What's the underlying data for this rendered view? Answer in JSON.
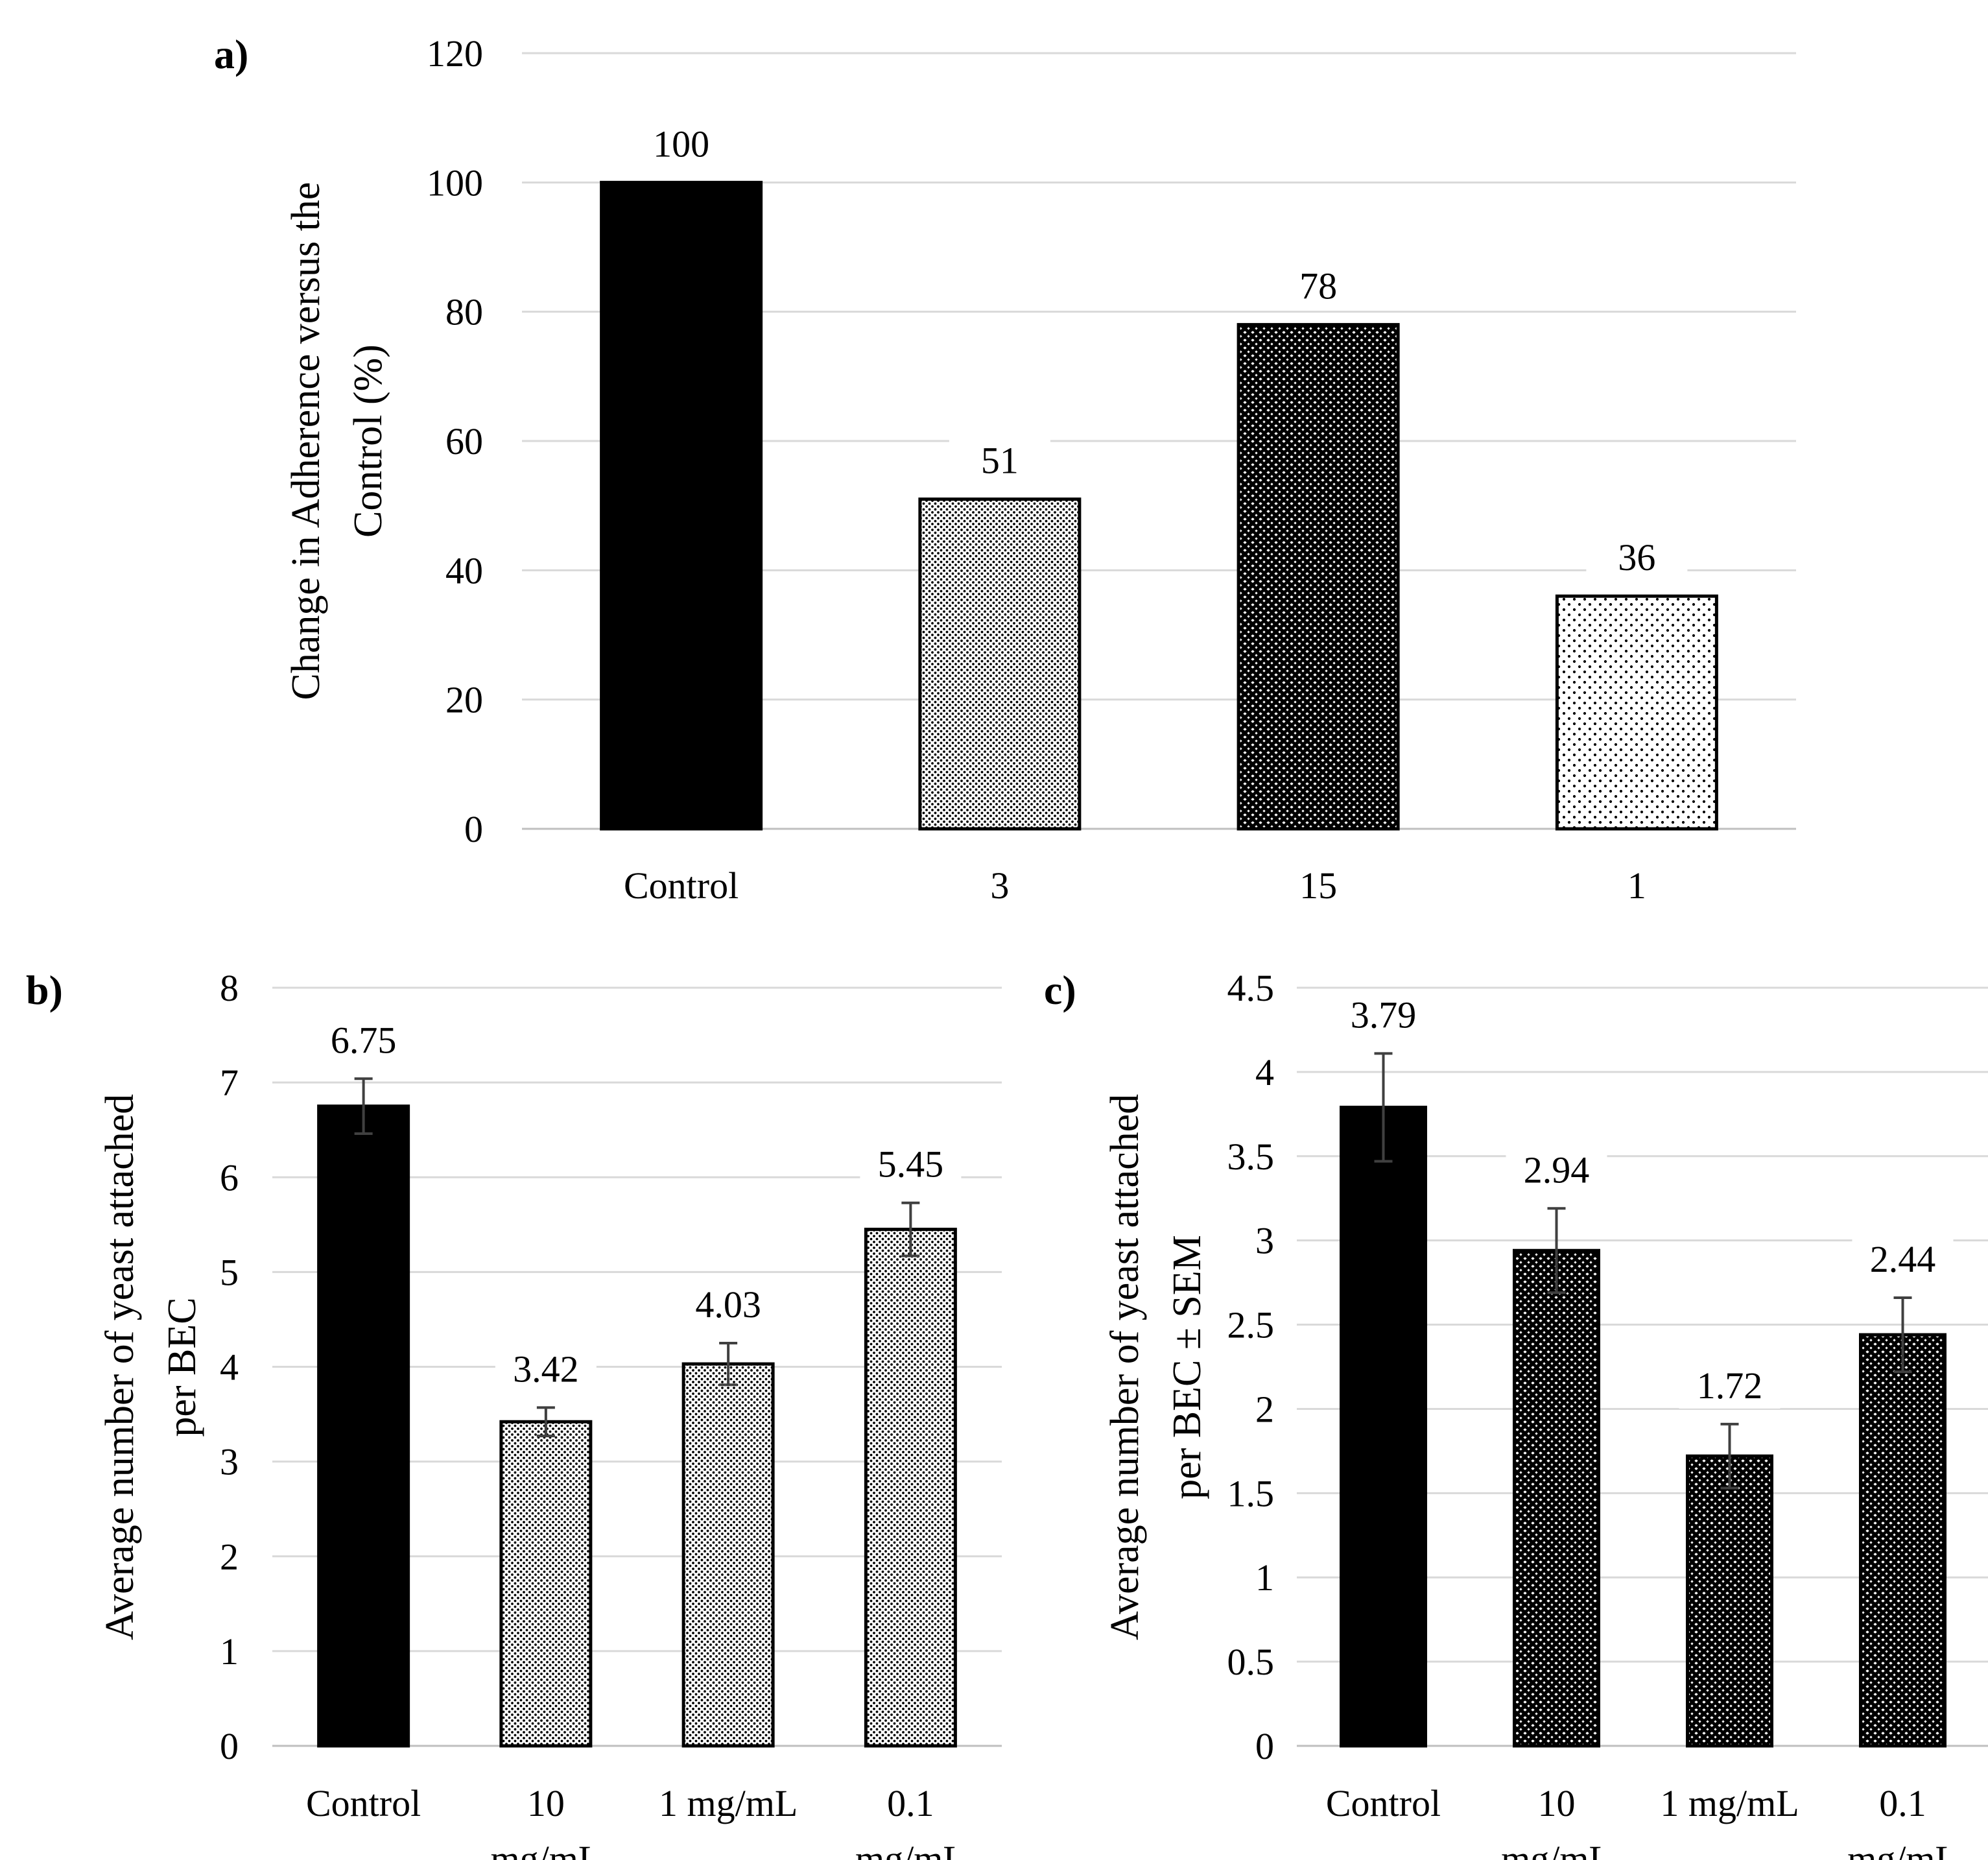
{
  "chart_data": [
    {
      "panel_label": "a)",
      "type": "bar",
      "categories": [
        "Control",
        "3",
        "15",
        "1"
      ],
      "values": [
        100,
        51,
        78,
        36
      ],
      "data_labels": [
        "100",
        "51",
        "78",
        "36"
      ],
      "ylabel": [
        "Change in Adherence versus the",
        "Control (%)"
      ],
      "ylim": [
        0,
        120
      ],
      "yticks": [
        0,
        20,
        40,
        60,
        80,
        100,
        120
      ],
      "yticklabels": [
        "0",
        "20",
        "40",
        "60",
        "80",
        "100",
        "120"
      ],
      "grid": true,
      "fills": [
        "solid",
        "fine-dots",
        "diamond-mesh",
        "sparse-dots"
      ],
      "error_bars": null
    },
    {
      "panel_label": "b)",
      "type": "bar",
      "categories": [
        [
          "Control"
        ],
        [
          "10",
          "mg/mL"
        ],
        [
          "1 mg/mL"
        ],
        [
          "0.1",
          "mg/mL"
        ]
      ],
      "values": [
        6.75,
        3.42,
        4.03,
        5.45
      ],
      "data_labels": [
        "6.75",
        "3.42",
        "4.03",
        "5.45"
      ],
      "errors": [
        0.29,
        0.15,
        0.22,
        0.28
      ],
      "ylabel": [
        "Average number of yeast attached",
        "per BEC"
      ],
      "ylim": [
        0,
        8
      ],
      "yticks": [
        0,
        1,
        2,
        3,
        4,
        5,
        6,
        7,
        8
      ],
      "yticklabels": [
        "0",
        "1",
        "2",
        "3",
        "4",
        "5",
        "6",
        "7",
        "8"
      ],
      "grid": true,
      "fills": [
        "solid",
        "fine-dots",
        "fine-dots",
        "fine-dots"
      ]
    },
    {
      "panel_label": "c)",
      "type": "bar",
      "categories": [
        [
          "Control"
        ],
        [
          "10",
          "mg/mL"
        ],
        [
          "1 mg/mL"
        ],
        [
          "0.1",
          "mg/mL"
        ]
      ],
      "values": [
        3.79,
        2.94,
        1.72,
        2.44
      ],
      "data_labels": [
        "3.79",
        "2.94",
        "1.72",
        "2.44"
      ],
      "errors": [
        0.32,
        0.25,
        0.19,
        0.22
      ],
      "ylabel": [
        "Average number of yeast attached",
        "per BEC ± SEM"
      ],
      "ylim": [
        0,
        4.5
      ],
      "yticks": [
        0,
        0.5,
        1,
        1.5,
        2,
        2.5,
        3,
        3.5,
        4,
        4.5
      ],
      "yticklabels": [
        "0",
        "0.5",
        "1",
        "1.5",
        "2",
        "2.5",
        "3",
        "3.5",
        "4",
        "4.5"
      ],
      "grid": true,
      "fills": [
        "solid",
        "diamond-mesh",
        "diamond-mesh",
        "diamond-mesh"
      ]
    }
  ],
  "colors": {
    "bar_solid": "#000000",
    "grid": "#d9d9d9",
    "axis": "#bfbfbf",
    "error_bar": "#404040",
    "text": "#000000"
  }
}
